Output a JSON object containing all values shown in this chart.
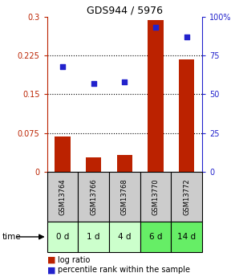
{
  "title": "GDS944 / 5976",
  "samples": [
    "GSM13764",
    "GSM13766",
    "GSM13768",
    "GSM13770",
    "GSM13772"
  ],
  "time_labels": [
    "0 d",
    "1 d",
    "4 d",
    "6 d",
    "14 d"
  ],
  "log_ratio": [
    0.068,
    0.028,
    0.033,
    0.293,
    0.218
  ],
  "percentile_rank": [
    68,
    57,
    58,
    93,
    87
  ],
  "left_ylim": [
    0,
    0.3
  ],
  "right_ylim": [
    0,
    100
  ],
  "left_yticks": [
    0,
    0.075,
    0.15,
    0.225,
    0.3
  ],
  "right_yticks": [
    0,
    25,
    50,
    75,
    100
  ],
  "left_yticklabels": [
    "0",
    "0.075",
    "0.15",
    "0.225",
    "0.3"
  ],
  "right_yticklabels": [
    "0",
    "25",
    "50",
    "75",
    "100%"
  ],
  "bar_color": "#bb2200",
  "dot_color": "#2222cc",
  "sample_bg": "#cccccc",
  "time_bg_light": "#ccffcc",
  "time_bg_dark": "#66ee66",
  "time_colors": [
    "#ccffcc",
    "#ccffcc",
    "#ccffcc",
    "#66ee66",
    "#66ee66"
  ],
  "bar_width": 0.5,
  "figsize": [
    2.93,
    3.45
  ],
  "dpi": 100
}
